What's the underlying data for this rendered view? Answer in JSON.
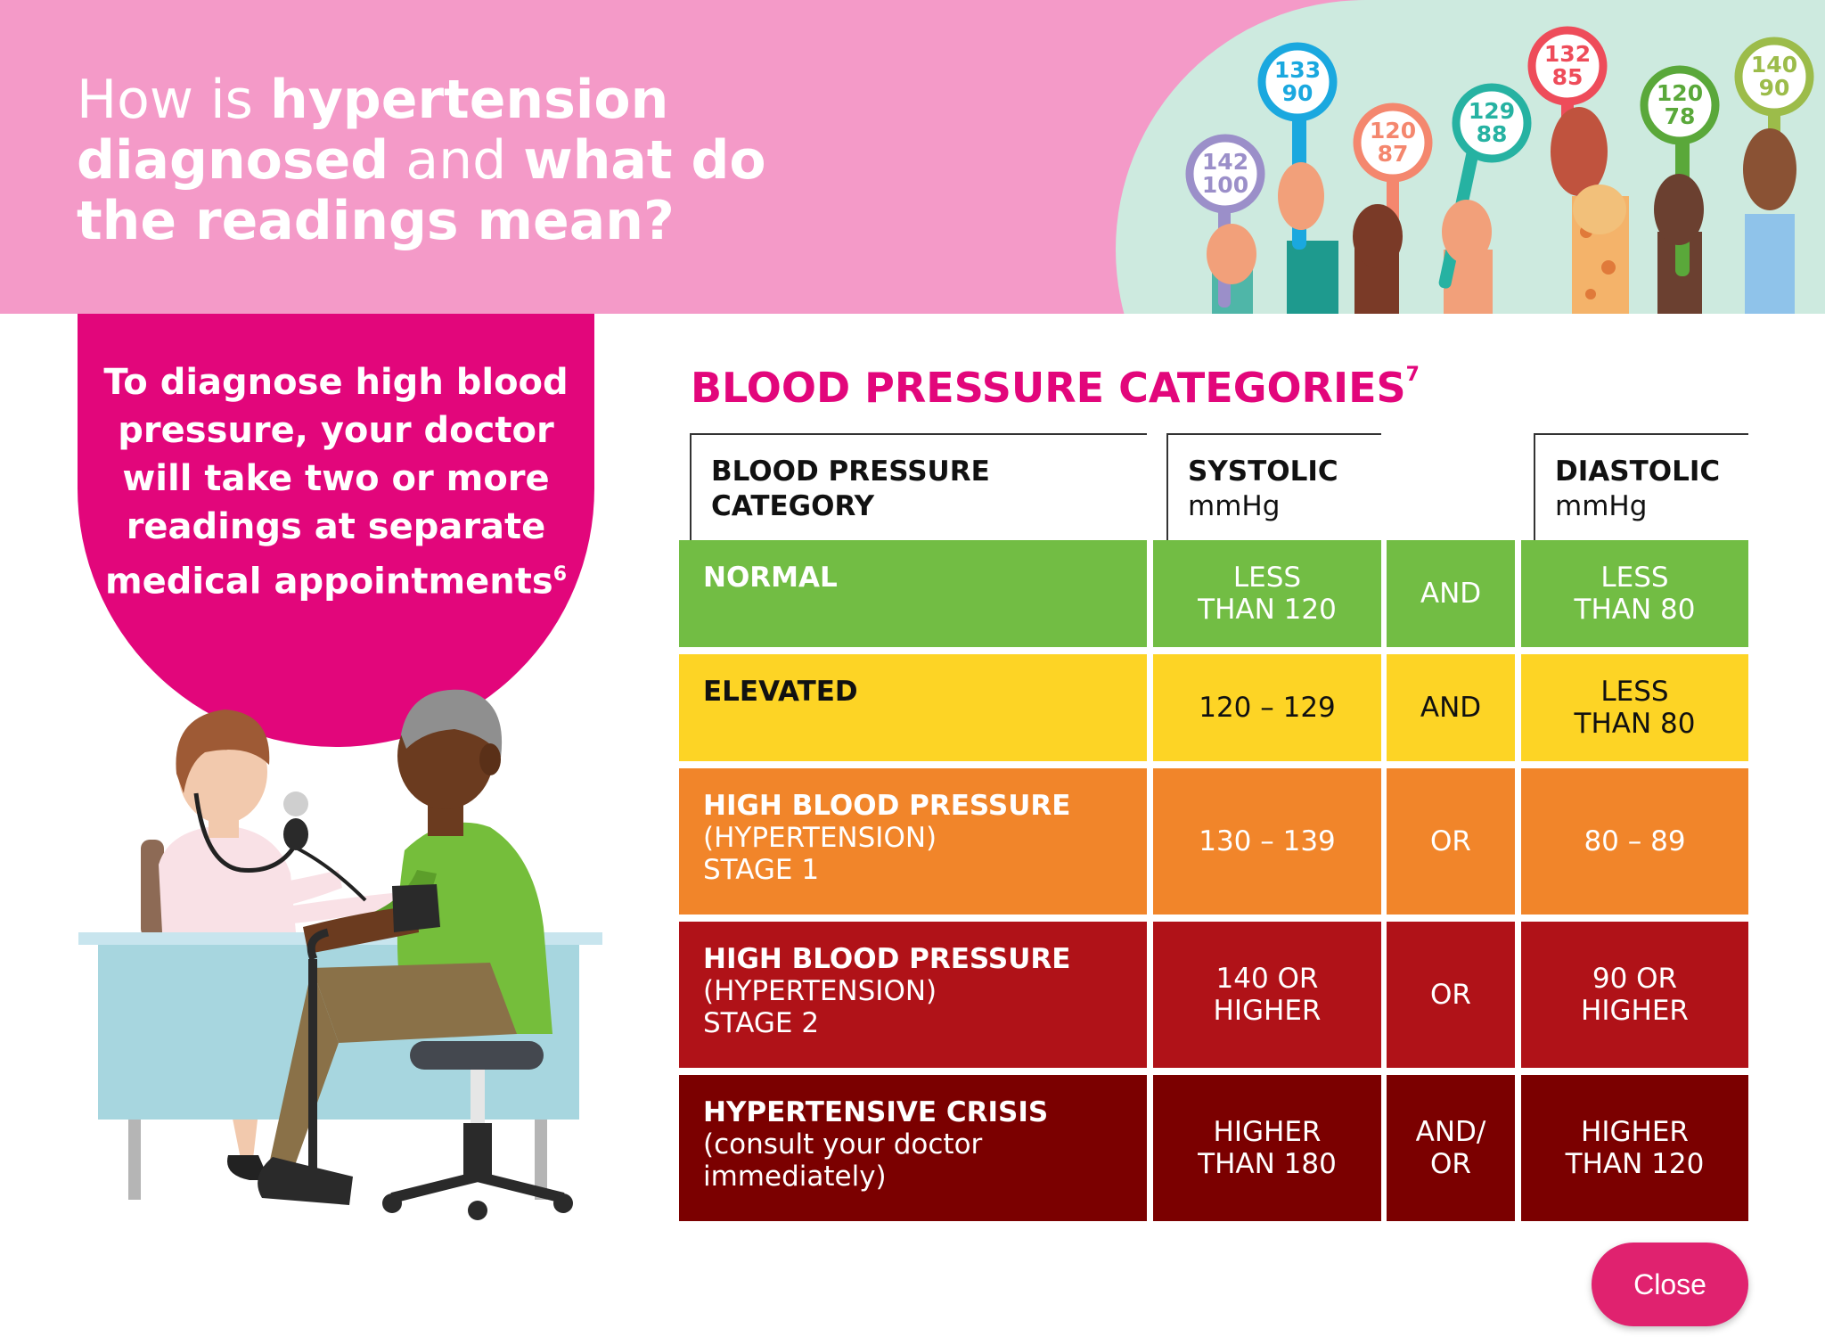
{
  "header": {
    "title_parts": [
      {
        "text": "How is ",
        "bold": false
      },
      {
        "text": "hypertension diagnosed",
        "bold": true
      },
      {
        "text": " and ",
        "bold": false
      },
      {
        "text": "what do the readings mean?",
        "bold": true
      }
    ],
    "signs": [
      {
        "top": "142",
        "bottom": "100",
        "color": "#9b8fc9"
      },
      {
        "top": "133",
        "bottom": "90",
        "color": "#1aa8df"
      },
      {
        "top": "120",
        "bottom": "87",
        "color": "#f4876e"
      },
      {
        "top": "129",
        "bottom": "88",
        "color": "#26b2a2"
      },
      {
        "top": "132",
        "bottom": "85",
        "color": "#ee4c5a"
      },
      {
        "top": "120",
        "bottom": "78",
        "color": "#5aa83a"
      },
      {
        "top": "140",
        "bottom": "90",
        "color": "#9cbc4a"
      }
    ]
  },
  "bubble": {
    "text": "To diagnose high blood pressure, your doctor will take two or more readings at separate medical appointments",
    "ref": "6"
  },
  "categories": {
    "title": "BLOOD PRESSURE CATEGORIES",
    "ref": "7",
    "columns": {
      "category": {
        "line1": "BLOOD PRESSURE",
        "line2": "CATEGORY"
      },
      "systolic": {
        "label": "SYSTOLIC",
        "unit": "mmHg"
      },
      "diastolic": {
        "label": "DIASTOLIC",
        "unit": "mmHg"
      }
    },
    "rows": [
      {
        "name": "NORMAL",
        "sub": "",
        "systolic": "LESS\nTHAN 120",
        "connector": "AND",
        "diastolic": "LESS\nTHAN 80",
        "bg": "#72bd44",
        "fg": "#ffffff"
      },
      {
        "name": "ELEVATED",
        "sub": "",
        "systolic": "120 – 129",
        "connector": "AND",
        "diastolic": "LESS\nTHAN 80",
        "bg": "#fdd425",
        "fg": "#111111"
      },
      {
        "name": "HIGH BLOOD PRESSURE",
        "sub": "(HYPERTENSION)\nSTAGE 1",
        "systolic": "130 – 139",
        "connector": "OR",
        "diastolic": "80 – 89",
        "bg": "#f1852a",
        "fg": "#ffffff"
      },
      {
        "name": "HIGH BLOOD PRESSURE",
        "sub": "(HYPERTENSION)\nSTAGE 2",
        "systolic": "140 OR\nHIGHER",
        "connector": "OR",
        "diastolic": "90 OR\nHIGHER",
        "bg": "#b01218",
        "fg": "#ffffff"
      },
      {
        "name": "HYPERTENSIVE CRISIS",
        "sub": "(consult your doctor\nimmediately)",
        "systolic": "HIGHER\nTHAN 180",
        "connector": "AND/\nOR",
        "diastolic": "HIGHER\nTHAN 120",
        "bg": "#7b0000",
        "fg": "#ffffff"
      }
    ]
  },
  "close_label": "Close"
}
